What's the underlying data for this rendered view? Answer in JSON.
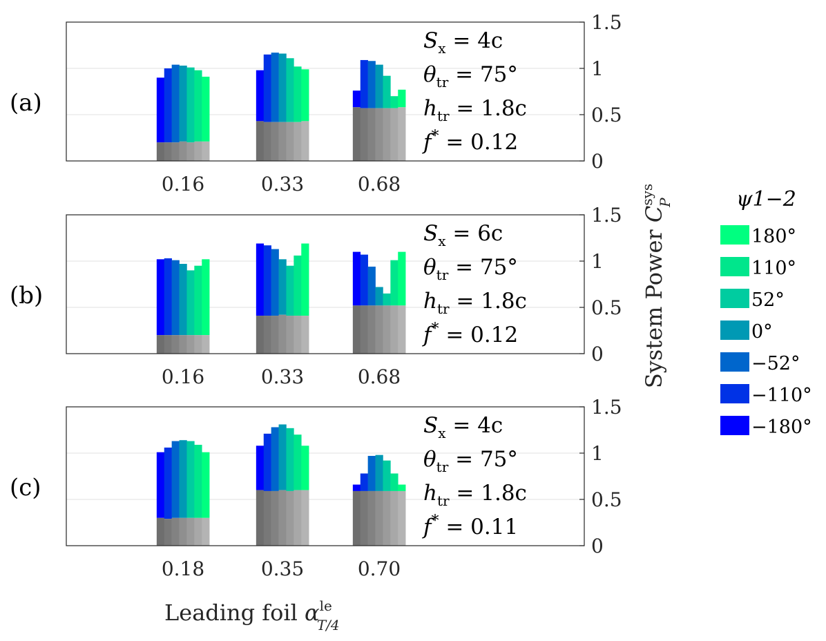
{
  "colors": {
    "psi": [
      "#0000FF",
      "#0032E6",
      "#0066CC",
      "#0099B4",
      "#00CCA0",
      "#00E68C",
      "#00FF80"
    ],
    "base": [
      "#6e6e6e",
      "#787878",
      "#828282",
      "#8f8f8f",
      "#9b9b9b",
      "#a8a8a8",
      "#b4b4b4"
    ],
    "grid": "#e0e0e0",
    "axis": "#262626"
  },
  "legend": {
    "title": "ψ1−2",
    "items": [
      "180°",
      "110°",
      "52°",
      "0°",
      "−52°",
      "−110°",
      "−180°"
    ]
  },
  "chart_data": [
    {
      "type": "bar",
      "panel_label": "(a)",
      "categories": [
        "0.16",
        "0.33",
        "0.68"
      ],
      "series_order": [
        "−180°",
        "−110°",
        "−52°",
        "0°",
        "52°",
        "110°",
        "180°"
      ],
      "total": [
        [
          0.9,
          1.0,
          1.04,
          1.03,
          1.01,
          0.98,
          0.91
        ],
        [
          0.98,
          1.15,
          1.17,
          1.16,
          1.11,
          1.02,
          0.99
        ],
        [
          0.76,
          1.09,
          1.08,
          1.04,
          0.92,
          0.7,
          0.77
        ]
      ],
      "base": [
        [
          0.2,
          0.2,
          0.2,
          0.21,
          0.2,
          0.21,
          0.21
        ],
        [
          0.43,
          0.42,
          0.42,
          0.42,
          0.42,
          0.42,
          0.43
        ],
        [
          0.58,
          0.57,
          0.57,
          0.57,
          0.57,
          0.57,
          0.58
        ]
      ],
      "ylim": [
        0,
        1.5
      ],
      "yticks": [
        "0",
        "0.5",
        "1",
        "1.5"
      ],
      "annotations": {
        "sx": {
          "sym": "S",
          "sub": "x",
          "val": " = 4c"
        },
        "theta": {
          "sym": "θ",
          "sub": "tr",
          "val": " = 75°"
        },
        "h": {
          "sym": "h",
          "sub": "tr",
          "val": " = 1.8c"
        },
        "f": {
          "sym": "f",
          "sup": "*",
          "val": " = 0.12"
        }
      }
    },
    {
      "type": "bar",
      "panel_label": "(b)",
      "categories": [
        "0.16",
        "0.33",
        "0.68"
      ],
      "series_order": [
        "−180°",
        "−110°",
        "−52°",
        "0°",
        "52°",
        "110°",
        "180°"
      ],
      "total": [
        [
          1.02,
          1.03,
          1.01,
          0.97,
          0.9,
          0.95,
          1.02
        ],
        [
          1.19,
          1.17,
          1.13,
          1.02,
          0.95,
          1.06,
          1.19
        ],
        [
          1.1,
          1.07,
          0.94,
          0.72,
          0.65,
          1.01,
          1.1
        ]
      ],
      "base": [
        [
          0.2,
          0.2,
          0.2,
          0.2,
          0.2,
          0.2,
          0.2
        ],
        [
          0.41,
          0.41,
          0.41,
          0.42,
          0.41,
          0.41,
          0.41
        ],
        [
          0.52,
          0.52,
          0.52,
          0.52,
          0.52,
          0.52,
          0.52
        ]
      ],
      "ylim": [
        0,
        1.5
      ],
      "yticks": [
        "0",
        "0.5",
        "1",
        "1.5"
      ],
      "annotations": {
        "sx": {
          "sym": "S",
          "sub": "x",
          "val": " = 6c"
        },
        "theta": {
          "sym": "θ",
          "sub": "tr",
          "val": " = 75°"
        },
        "h": {
          "sym": "h",
          "sub": "tr",
          "val": " = 1.8c"
        },
        "f": {
          "sym": "f",
          "sup": "*",
          "val": " = 0.12"
        }
      }
    },
    {
      "type": "bar",
      "panel_label": "(c)",
      "categories": [
        "0.18",
        "0.35",
        "0.70"
      ],
      "series_order": [
        "−180°",
        "−110°",
        "−52°",
        "0°",
        "52°",
        "110°",
        "180°"
      ],
      "total": [
        [
          1.01,
          1.06,
          1.13,
          1.14,
          1.13,
          1.09,
          1.01
        ],
        [
          1.08,
          1.21,
          1.28,
          1.31,
          1.27,
          1.2,
          1.08
        ],
        [
          0.66,
          0.78,
          0.97,
          0.98,
          0.92,
          0.78,
          0.66
        ]
      ],
      "base": [
        [
          0.3,
          0.29,
          0.3,
          0.3,
          0.3,
          0.3,
          0.3
        ],
        [
          0.6,
          0.59,
          0.59,
          0.6,
          0.59,
          0.6,
          0.6
        ],
        [
          0.59,
          0.59,
          0.59,
          0.59,
          0.59,
          0.59,
          0.59
        ]
      ],
      "ylim": [
        0,
        1.5
      ],
      "yticks": [
        "0",
        "0.5",
        "1",
        "1.5"
      ],
      "annotations": {
        "sx": {
          "sym": "S",
          "sub": "x",
          "val": " = 4c"
        },
        "theta": {
          "sym": "θ",
          "sub": "tr",
          "val": " = 75°"
        },
        "h": {
          "sym": "h",
          "sub": "tr",
          "val": " = 1.8c"
        },
        "f": {
          "sym": "f",
          "sup": "*",
          "val": " = 0.11"
        }
      }
    }
  ],
  "axes": {
    "ylabel": {
      "text": "System Power ",
      "sym": "C",
      "sup": "sys",
      "sub": "P"
    },
    "xlabel": {
      "text": "Leading foil ",
      "sym": "α",
      "sup": "le",
      "sub": "T/4"
    }
  }
}
